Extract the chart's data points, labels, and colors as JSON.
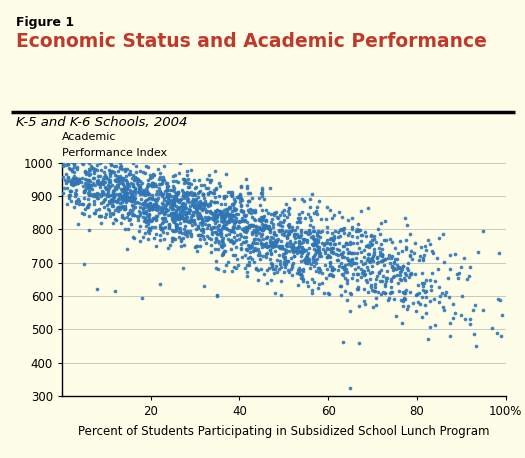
{
  "figure_label": "Figure 1",
  "title": "Economic Status and Academic Performance",
  "subtitle": "K-5 and K-6 Schools, 2004",
  "ylabel_line1": "Academic",
  "ylabel_line2": "Performance Index",
  "xlabel": "Percent of Students Participating in Subsidized School Lunch Program",
  "xlim": [
    0,
    100
  ],
  "ylim": [
    300,
    1000
  ],
  "yticks": [
    300,
    400,
    500,
    600,
    700,
    800,
    900,
    1000
  ],
  "xticks": [
    20,
    40,
    60,
    80,
    100
  ],
  "xticklabels": [
    "20",
    "40",
    "60",
    "80",
    "100%"
  ],
  "dot_color": "#2e75b6",
  "background_color": "#fefee8",
  "outer_background": "#fefee8",
  "title_color": "#c0392b",
  "grid_color": "#c8c8c8",
  "seed": 42,
  "n_points": 2200,
  "trend_slope": -3.8,
  "trend_intercept": 960,
  "spread_base": 45,
  "spread_high_x": 35
}
